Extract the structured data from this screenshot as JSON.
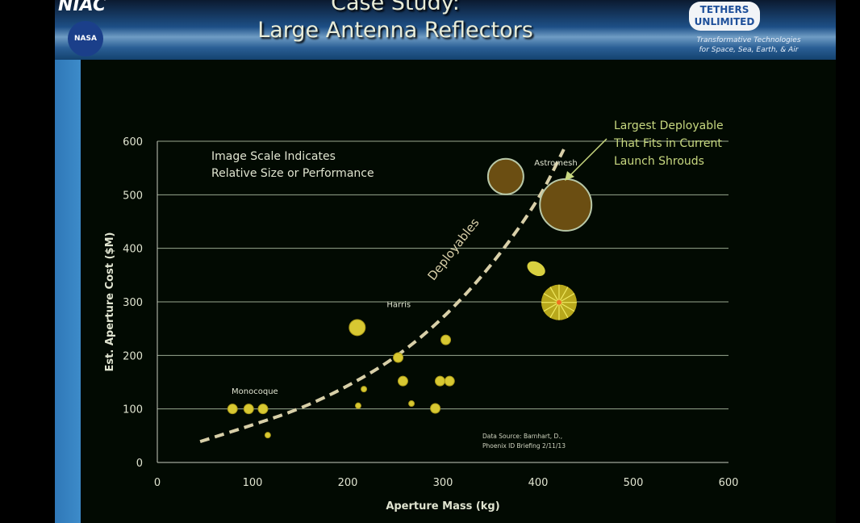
{
  "header": {
    "title_line1": "Case Study:",
    "title_line2": "Large Antenna Reflectors",
    "logo_left_top": "NIAC",
    "logo_left_bottom": "NASA",
    "logo_right": "TETHERS UNLIMITED",
    "logo_right_tagline_1": "Transformative Technologies",
    "logo_right_tagline_2": "for Space, Sea, Earth, & Air"
  },
  "chart_data": {
    "type": "scatter",
    "title": "",
    "xlabel": "Aperture Mass (kg)",
    "ylabel": "Est. Aperture Cost ($M)",
    "xlim": [
      0,
      600
    ],
    "ylim": [
      0,
      600
    ],
    "xticks": [
      "0",
      "100",
      "200",
      "300",
      "400",
      "500",
      "600"
    ],
    "yticks": [
      "0",
      "100",
      "200",
      "300",
      "400",
      "500",
      "600"
    ],
    "grid": "horizontal",
    "colors": {
      "point": "#d8c832",
      "large_fill": "#6b4e12",
      "large_stroke": "#b8c8a8",
      "curve": "#d8cfa8",
      "text": "#e0e4d0",
      "annotation": "#c8d880"
    },
    "points": [
      {
        "x": 79,
        "y": 100,
        "size": "small"
      },
      {
        "x": 96,
        "y": 100,
        "size": "small"
      },
      {
        "x": 111,
        "y": 100,
        "size": "small"
      },
      {
        "x": 116,
        "y": 51,
        "size": "tiny"
      },
      {
        "x": 210,
        "y": 252,
        "size": "medium"
      },
      {
        "x": 217,
        "y": 137,
        "size": "tiny"
      },
      {
        "x": 211,
        "y": 106,
        "size": "tiny"
      },
      {
        "x": 253,
        "y": 196,
        "size": "small"
      },
      {
        "x": 258,
        "y": 152,
        "size": "small"
      },
      {
        "x": 267,
        "y": 110,
        "size": "tiny"
      },
      {
        "x": 292,
        "y": 101,
        "size": "small"
      },
      {
        "x": 303,
        "y": 229,
        "size": "small"
      },
      {
        "x": 297,
        "y": 152,
        "size": "small"
      },
      {
        "x": 307,
        "y": 152,
        "size": "small"
      },
      {
        "x": 366,
        "y": 534,
        "size": "large"
      },
      {
        "x": 429,
        "y": 481,
        "size": "xlarge"
      },
      {
        "x": 398,
        "y": 362,
        "size": "medium"
      },
      {
        "x": 422,
        "y": 299,
        "size": "umbrella"
      }
    ],
    "trend_curve": {
      "label": "Deployables",
      "points": [
        [
          45,
          39
        ],
        [
          100,
          70
        ],
        [
          150,
          100
        ],
        [
          200,
          142
        ],
        [
          250,
          195
        ],
        [
          300,
          268
        ],
        [
          350,
          365
        ],
        [
          400,
          488
        ],
        [
          427,
          585
        ]
      ]
    },
    "labels": [
      {
        "text": "Monocoque",
        "x": 78,
        "y": 128
      },
      {
        "text": "Harris",
        "x": 241,
        "y": 290
      },
      {
        "text": "Astromesh",
        "x": 396,
        "y": 555
      }
    ],
    "annotations": {
      "scale_note_1": "Image Scale Indicates",
      "scale_note_2": "Relative Size or Performance",
      "largest_1": "Largest Deployable",
      "largest_2": "That Fits in Current",
      "largest_3": "Launch Shrouds",
      "source_1": "Data Source:  Barnhart, D.,",
      "source_2": "Phoenix ID Briefing 2/11/13"
    }
  }
}
